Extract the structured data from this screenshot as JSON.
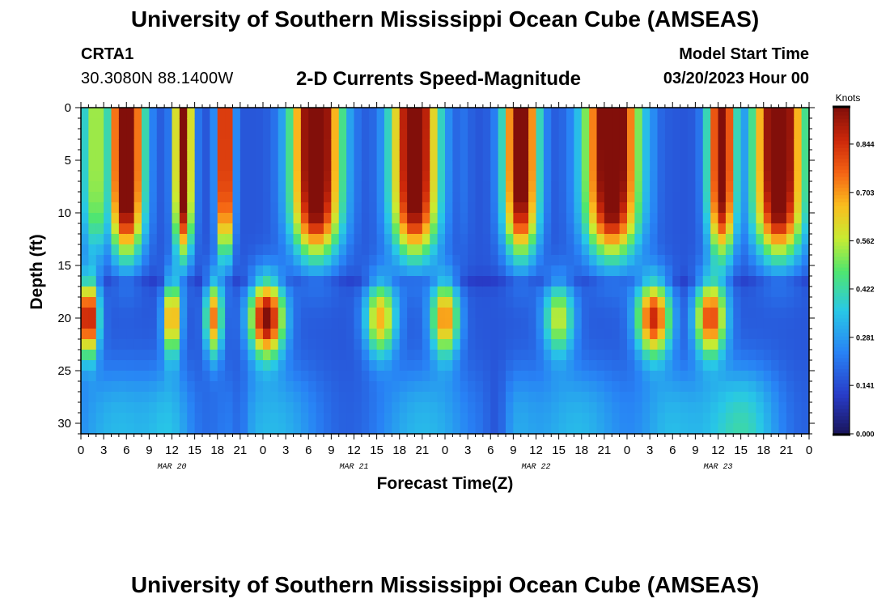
{
  "header": {
    "title": "University of Southern Mississippi Ocean Cube (AMSEAS)",
    "station_id": "CRTA1",
    "coordinates": "30.3080N  88.1400W",
    "subtitle": "2-D Currents Speed-Magnitude",
    "model_start_label": "Model Start Time",
    "model_start_value": "03/20/2023 Hour 00"
  },
  "footer": {
    "title": "University of Southern Mississippi Ocean Cube (AMSEAS)"
  },
  "chart_data": {
    "type": "heatmap",
    "title": "2-D Currents Speed-Magnitude",
    "xlabel": "Forecast Time(Z)",
    "ylabel": "Depth (ft)",
    "x_range_hours": [
      0,
      96
    ],
    "x_ticks": [
      {
        "hour": 0,
        "label": "0"
      },
      {
        "hour": 3,
        "label": "3"
      },
      {
        "hour": 6,
        "label": "6"
      },
      {
        "hour": 9,
        "label": "9"
      },
      {
        "hour": 12,
        "label": "12"
      },
      {
        "hour": 15,
        "label": "15"
      },
      {
        "hour": 18,
        "label": "18"
      },
      {
        "hour": 21,
        "label": "21"
      },
      {
        "hour": 24,
        "label": "0"
      },
      {
        "hour": 27,
        "label": "3"
      },
      {
        "hour": 30,
        "label": "6"
      },
      {
        "hour": 33,
        "label": "9"
      },
      {
        "hour": 36,
        "label": "12"
      },
      {
        "hour": 39,
        "label": "15"
      },
      {
        "hour": 42,
        "label": "18"
      },
      {
        "hour": 45,
        "label": "21"
      },
      {
        "hour": 48,
        "label": "0"
      },
      {
        "hour": 51,
        "label": "3"
      },
      {
        "hour": 54,
        "label": "6"
      },
      {
        "hour": 57,
        "label": "9"
      },
      {
        "hour": 60,
        "label": "12"
      },
      {
        "hour": 63,
        "label": "15"
      },
      {
        "hour": 66,
        "label": "18"
      },
      {
        "hour": 69,
        "label": "21"
      },
      {
        "hour": 72,
        "label": "0"
      },
      {
        "hour": 75,
        "label": "3"
      },
      {
        "hour": 78,
        "label": "6"
      },
      {
        "hour": 81,
        "label": "9"
      },
      {
        "hour": 84,
        "label": "12"
      },
      {
        "hour": 87,
        "label": "15"
      },
      {
        "hour": 90,
        "label": "18"
      },
      {
        "hour": 93,
        "label": "21"
      },
      {
        "hour": 96,
        "label": "0"
      }
    ],
    "date_labels": [
      {
        "hour": 12,
        "label": "MAR 20"
      },
      {
        "hour": 36,
        "label": "MAR 21"
      },
      {
        "hour": 60,
        "label": "MAR 22"
      },
      {
        "hour": 84,
        "label": "MAR 23"
      }
    ],
    "y_range_ft": [
      0,
      31
    ],
    "y_ticks": [
      0,
      5,
      10,
      15,
      20,
      25,
      30
    ],
    "colorbar": {
      "unit": "Knots",
      "min": 0.0,
      "max": 0.95,
      "ticks": [
        "0.000",
        "0.141",
        "0.281",
        "0.422",
        "0.562",
        "0.703",
        "0.844"
      ],
      "tick_values": [
        0.0,
        0.141,
        0.281,
        0.422,
        0.562,
        0.703,
        0.844
      ]
    },
    "grid": false
  }
}
